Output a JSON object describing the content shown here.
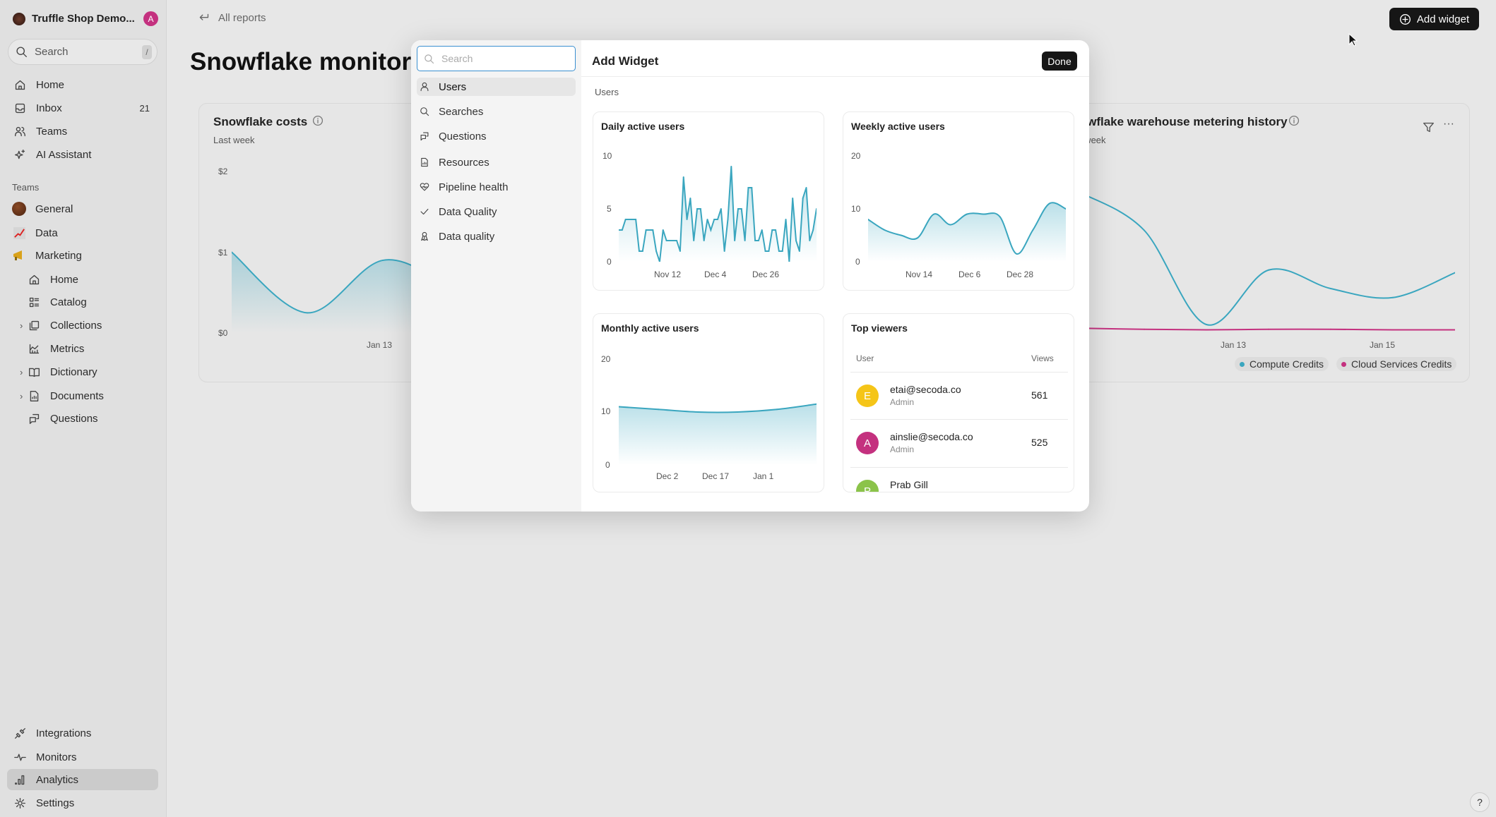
{
  "workspace": {
    "name": "Truffle Shop Demo...",
    "avatar_letter": "A",
    "avatar_color": "#c4317f"
  },
  "sidebar": {
    "search_placeholder": "Search",
    "search_shortcut": "/",
    "nav": [
      {
        "label": "Home",
        "icon": "home-icon"
      },
      {
        "label": "Inbox",
        "icon": "inbox-icon",
        "badge": "21"
      },
      {
        "label": "Teams",
        "icon": "users-icon"
      },
      {
        "label": "AI Assistant",
        "icon": "sparkle-icon"
      }
    ],
    "teams_label": "Teams",
    "teams": [
      {
        "label": "General",
        "icon": "chocolate-emoji"
      },
      {
        "label": "Data",
        "icon": "chart-emoji"
      },
      {
        "label": "Marketing",
        "icon": "megaphone-emoji"
      }
    ],
    "marketing_items": [
      {
        "label": "Home"
      },
      {
        "label": "Catalog"
      },
      {
        "label": "Collections"
      },
      {
        "label": "Metrics"
      },
      {
        "label": "Dictionary"
      },
      {
        "label": "Documents"
      },
      {
        "label": "Questions"
      }
    ],
    "bottom": [
      {
        "label": "Integrations"
      },
      {
        "label": "Monitors"
      },
      {
        "label": "Analytics",
        "active": true
      },
      {
        "label": "Settings"
      }
    ]
  },
  "header": {
    "back_label": "All reports",
    "title": "Snowflake monitoring",
    "add_widget_label": "Add widget"
  },
  "cards": {
    "costs": {
      "title": "Snowflake costs",
      "subtitle": "Last week",
      "yticks": [
        "$2",
        "$1",
        "$0"
      ],
      "xticks": [
        "Jan 13"
      ]
    },
    "metering": {
      "title": "Snowflake warehouse metering history",
      "subtitle": "Last week",
      "xticks": [
        "Jan 13",
        "Jan 15"
      ],
      "legend": [
        {
          "name": "Compute Credits",
          "color": "#3aa6bf"
        },
        {
          "name": "Cloud Services Credits",
          "color": "#c4317f"
        }
      ]
    }
  },
  "modal": {
    "search_placeholder": "Search",
    "title": "Add Widget",
    "done_label": "Done",
    "section_label": "Users",
    "categories": [
      {
        "label": "Users",
        "icon": "user-icon",
        "active": true
      },
      {
        "label": "Searches",
        "icon": "search-icon"
      },
      {
        "label": "Questions",
        "icon": "questions-icon"
      },
      {
        "label": "Resources",
        "icon": "document-icon"
      },
      {
        "label": "Pipeline health",
        "icon": "heart-pulse-icon"
      },
      {
        "label": "Data Quality",
        "icon": "check-icon"
      },
      {
        "label": "Data quality",
        "icon": "ribbon-icon"
      }
    ],
    "top_viewers": {
      "title": "Top viewers",
      "col_user": "User",
      "col_views": "Views",
      "rows": [
        {
          "letter": "E",
          "email": "etai@secoda.co",
          "role": "Admin",
          "views": "561",
          "color": "#f5c518"
        },
        {
          "letter": "A",
          "email": "ainslie@secoda.co",
          "role": "Admin",
          "views": "525",
          "color": "#c4317f"
        },
        {
          "letter": "P",
          "email": "Prab Gill",
          "role": "",
          "views": "",
          "color": "#8bc34a"
        }
      ]
    }
  },
  "chart_data": [
    {
      "id": "dau",
      "type": "line",
      "title": "Daily active users",
      "ylim": [
        0,
        10
      ],
      "yticks": [
        "10",
        "5",
        "0"
      ],
      "xticks": [
        "Nov 12",
        "Dec 4",
        "Dec 26"
      ],
      "values": [
        3,
        3,
        4,
        4,
        4,
        4,
        1,
        1,
        3,
        3,
        3,
        1,
        0,
        3,
        2,
        2,
        2,
        2,
        1,
        8,
        4,
        6,
        2,
        5,
        5,
        2,
        4,
        3,
        4,
        4,
        5,
        1,
        4,
        9,
        2,
        5,
        5,
        2,
        7,
        7,
        2,
        2,
        3,
        1,
        1,
        3,
        3,
        1,
        1,
        4,
        0,
        6,
        2,
        1,
        6,
        7,
        2,
        3,
        5
      ],
      "color": "#3aa6bf"
    },
    {
      "id": "wau",
      "type": "area",
      "title": "Weekly active users",
      "ylim": [
        0,
        20
      ],
      "yticks": [
        "20",
        "10",
        "0"
      ],
      "xticks": [
        "Nov 14",
        "Dec 6",
        "Dec 28"
      ],
      "values": [
        8,
        6,
        5,
        4.5,
        9,
        7,
        9,
        9,
        8.5,
        1.5,
        6,
        11,
        10
      ],
      "color": "#3aa6bf"
    },
    {
      "id": "mau",
      "type": "area",
      "title": "Monthly active users",
      "ylim": [
        0,
        20
      ],
      "yticks": [
        "20",
        "10",
        "0"
      ],
      "xticks": [
        "Dec 2",
        "Dec 17",
        "Jan 1"
      ],
      "values": [
        11,
        10.5,
        10,
        10,
        10.5,
        11.5
      ],
      "color": "#3aa6bf"
    },
    {
      "id": "costs",
      "type": "area",
      "title": "Snowflake costs",
      "ylim": [
        0,
        2
      ],
      "values": [
        1.0,
        0.25,
        0.9,
        0.6,
        0.7,
        0.5,
        0.8
      ],
      "color": "#3aa6bf"
    },
    {
      "id": "metering",
      "type": "line",
      "title": "Snowflake warehouse metering history",
      "series": [
        {
          "name": "Compute Credits",
          "values": [
            2.6,
            1.9,
            0.12,
            1.15,
            0.8,
            0.63,
            1.1
          ],
          "color": "#3aa6bf"
        },
        {
          "name": "Cloud Services Credits",
          "values": [
            0.05,
            0.03,
            0.02,
            0.03,
            0.03,
            0.02,
            0.02
          ],
          "color": "#c4317f"
        }
      ],
      "xticks": [
        "Jan 13",
        "Jan 15"
      ]
    }
  ]
}
